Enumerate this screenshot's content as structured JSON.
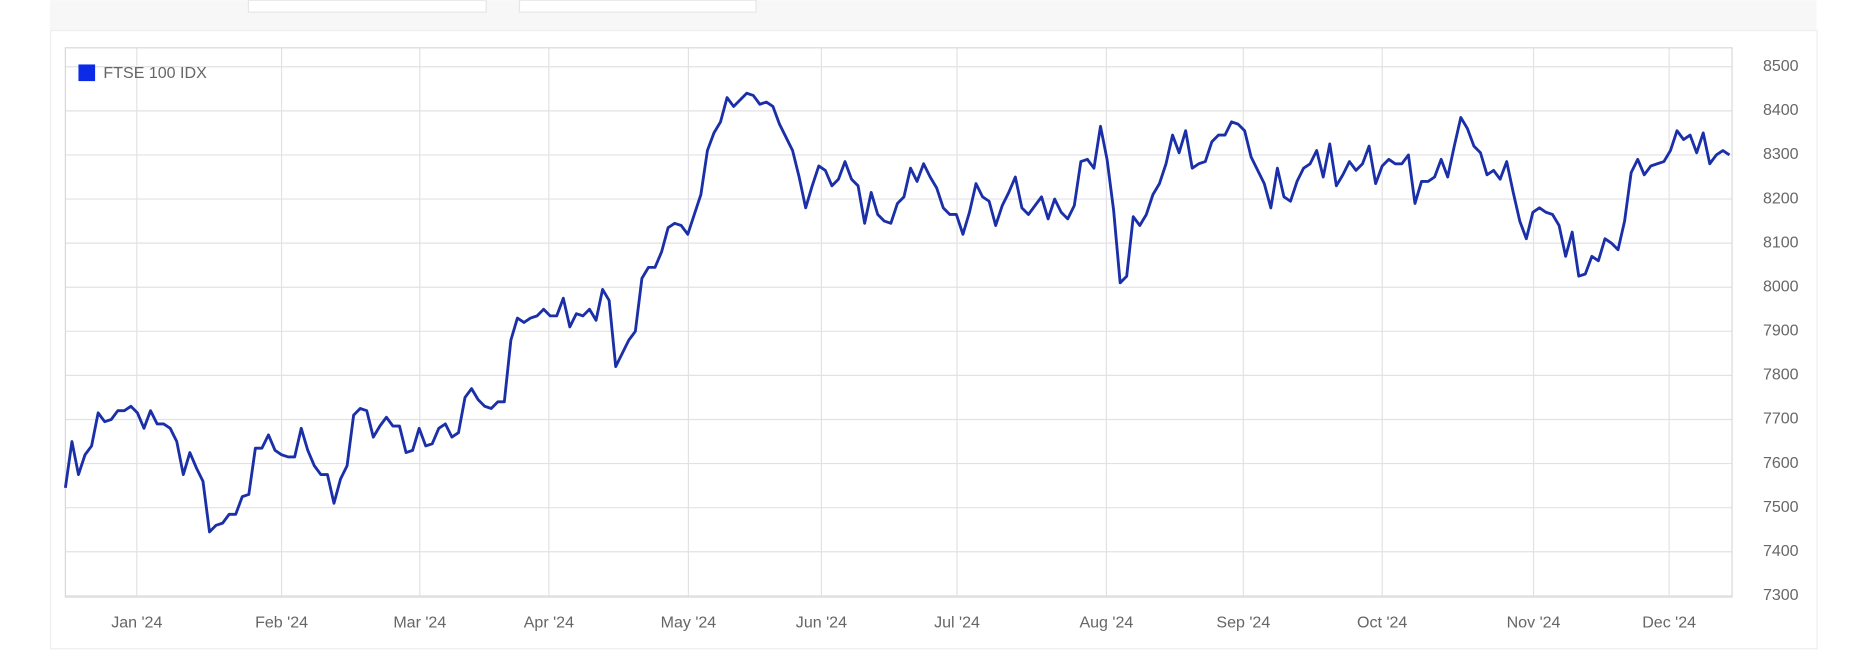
{
  "chart_data": {
    "type": "line",
    "series": [
      {
        "name": "FTSE 100 IDX",
        "color": "#1a2fa8",
        "legend_color": "#0b2be6",
        "values": [
          7545,
          7650,
          7575,
          7620,
          7640,
          7715,
          7695,
          7700,
          7720,
          7720,
          7730,
          7715,
          7680,
          7720,
          7690,
          7690,
          7680,
          7650,
          7575,
          7625,
          7590,
          7560,
          7445,
          7460,
          7465,
          7485,
          7485,
          7525,
          7530,
          7635,
          7635,
          7665,
          7630,
          7620,
          7615,
          7615,
          7680,
          7630,
          7595,
          7575,
          7575,
          7510,
          7565,
          7595,
          7710,
          7725,
          7720,
          7660,
          7685,
          7705,
          7685,
          7685,
          7625,
          7630,
          7680,
          7640,
          7645,
          7680,
          7690,
          7660,
          7670,
          7750,
          7770,
          7745,
          7730,
          7725,
          7740,
          7740,
          7880,
          7930,
          7920,
          7930,
          7935,
          7950,
          7935,
          7935,
          7975,
          7910,
          7940,
          7935,
          7950,
          7925,
          7995,
          7970,
          7820,
          7850,
          7880,
          7900,
          8020,
          8045,
          8045,
          8080,
          8135,
          8145,
          8140,
          8120,
          8165,
          8210,
          8310,
          8350,
          8375,
          8430,
          8410,
          8425,
          8440,
          8435,
          8415,
          8420,
          8410,
          8370,
          8340,
          8310,
          8250,
          8180,
          8230,
          8275,
          8265,
          8230,
          8245,
          8285,
          8245,
          8230,
          8145,
          8215,
          8165,
          8150,
          8145,
          8190,
          8205,
          8270,
          8240,
          8280,
          8250,
          8225,
          8180,
          8165,
          8165,
          8120,
          8170,
          8235,
          8205,
          8195,
          8140,
          8185,
          8215,
          8250,
          8180,
          8165,
          8185,
          8205,
          8155,
          8200,
          8170,
          8155,
          8185,
          8285,
          8290,
          8270,
          8365,
          8290,
          8175,
          8010,
          8025,
          8160,
          8140,
          8165,
          8210,
          8235,
          8280,
          8345,
          8305,
          8355,
          8270,
          8280,
          8285,
          8330,
          8345,
          8345,
          8375,
          8370,
          8355,
          8295,
          8265,
          8235,
          8180,
          8270,
          8205,
          8195,
          8240,
          8270,
          8280,
          8310,
          8250,
          8325,
          8230,
          8255,
          8285,
          8265,
          8280,
          8320,
          8235,
          8275,
          8290,
          8280,
          8280,
          8300,
          8190,
          8240,
          8240,
          8250,
          8290,
          8250,
          8320,
          8385,
          8360,
          8320,
          8305,
          8255,
          8265,
          8245,
          8285,
          8215,
          8150,
          8110,
          8170,
          8180,
          8170,
          8165,
          8140,
          8070,
          8125,
          8025,
          8030,
          8070,
          8060,
          8110,
          8100,
          8085,
          8150,
          8260,
          8290,
          8255,
          8275,
          8280,
          8285,
          8310,
          8355,
          8335,
          8345,
          8305,
          8350,
          8280,
          8300,
          8310,
          8300
        ]
      }
    ],
    "xlim": [
      0,
      254.4
    ],
    "xticks": [
      {
        "value": 10.9,
        "label": "Jan '24"
      },
      {
        "value": 33.0,
        "label": "Feb '24"
      },
      {
        "value": 54.1,
        "label": "Mar '24"
      },
      {
        "value": 73.8,
        "label": "Apr '24"
      },
      {
        "value": 95.1,
        "label": "May '24"
      },
      {
        "value": 115.4,
        "label": "Jun '24"
      },
      {
        "value": 136.1,
        "label": "Jul '24"
      },
      {
        "value": 158.9,
        "label": "Aug '24"
      },
      {
        "value": 179.8,
        "label": "Sep '24"
      },
      {
        "value": 201.0,
        "label": "Oct '24"
      },
      {
        "value": 224.1,
        "label": "Nov '24"
      },
      {
        "value": 244.8,
        "label": "Dec '24"
      }
    ],
    "ylim": [
      7300,
      8543
    ],
    "yticks": [
      7300,
      7400,
      7500,
      7600,
      7700,
      7800,
      7900,
      8000,
      8100,
      8200,
      8300,
      8400,
      8500
    ],
    "grid": true,
    "legend": "top-left"
  }
}
